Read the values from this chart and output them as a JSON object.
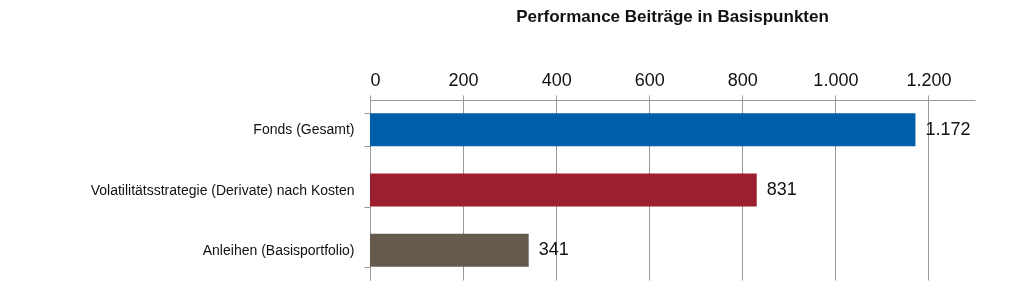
{
  "chart_data": {
    "type": "bar",
    "orientation": "horizontal",
    "title": "Performance Beiträge in Basispunkten",
    "categories": [
      "Fonds (Gesamt)",
      "Volatilitätsstrategie (Derivate) nach Kosten",
      "Anleihen (Basisportfolio)"
    ],
    "values": [
      1172,
      831,
      341
    ],
    "colors": [
      "#005ea8",
      "#9b1f2e",
      "#665a4e"
    ],
    "value_labels": [
      "1.172",
      "831",
      "341"
    ],
    "xlim": [
      0,
      1300
    ],
    "xticks": [
      0,
      200,
      400,
      600,
      800,
      {
        "value": 1000,
        "label": "1.000"
      },
      {
        "value": 1200,
        "label": "1.200"
      }
    ],
    "grid": "x",
    "legend": false
  }
}
